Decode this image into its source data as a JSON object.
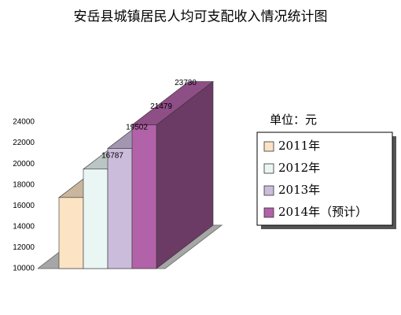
{
  "chart_data": {
    "type": "bar3d",
    "title": "安岳县城镇居民人均可支配收入情况统计图",
    "unit_label": "单位：元",
    "categories": [
      "2011年",
      "2012年",
      "2013年",
      "2014年（预计）"
    ],
    "values": [
      16787,
      19502,
      21479,
      23730
    ],
    "colors": [
      "#fbe3c4",
      "#eaf6f4",
      "#cbbcdc",
      "#b262a8"
    ],
    "ylim": [
      10000,
      24000
    ],
    "yticks": [
      10000,
      12000,
      14000,
      16000,
      18000,
      20000,
      22000,
      24000
    ]
  }
}
